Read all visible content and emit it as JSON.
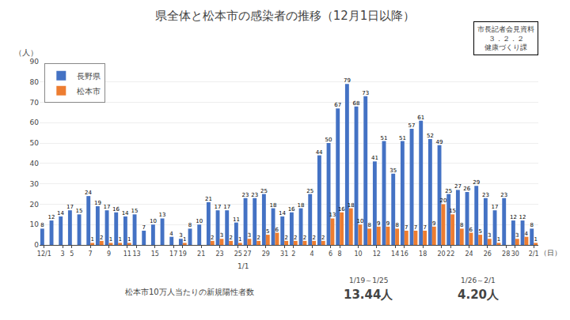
{
  "chart_data": {
    "type": "bar",
    "title": "県全体と松本市の感染者の推移（12月1日以降）",
    "ylabel": "（人）",
    "x_label": "（日）",
    "x_note": "1/1",
    "box_text": [
      "市長記者会見資料",
      "３．２．２",
      "健康づくり課"
    ],
    "annotations": [
      "松本市10万人当たりの新規陽性者数",
      "1/19～1/25",
      "13.44人",
      "1/26～2/1",
      "4.20人"
    ],
    "categories": [
      "12/1",
      null,
      "3",
      "5",
      null,
      "7",
      null,
      "9",
      null,
      "11",
      "13",
      null,
      "15",
      null,
      "17",
      "19",
      null,
      "21",
      null,
      "23",
      null,
      "25",
      "27",
      null,
      "29",
      null,
      "31",
      "2",
      null,
      "4",
      null,
      "6",
      "8",
      null,
      "10",
      null,
      "12",
      null,
      "14",
      "16",
      null,
      "18",
      null,
      "20",
      "22",
      null,
      "24",
      null,
      "26",
      null,
      "28",
      "30",
      null,
      "2/1"
    ],
    "series": [
      {
        "name": "長野県",
        "color": "#4472C4",
        "values": [
          8,
          12,
          14,
          17,
          15,
          24,
          19,
          17,
          16,
          14,
          15,
          7,
          10,
          13,
          4,
          3,
          8,
          10,
          21,
          17,
          17,
          11,
          23,
          23,
          25,
          18,
          14,
          16,
          18,
          25,
          44,
          50,
          67,
          79,
          68,
          73,
          41,
          51,
          35,
          51,
          57,
          61,
          52,
          49,
          25,
          27,
          26,
          29,
          23,
          17,
          23,
          12,
          12,
          8
        ]
      },
      {
        "name": "松本市",
        "color": "#ED7D31",
        "values": [
          0,
          0,
          0,
          0,
          0,
          1,
          2,
          1,
          1,
          1,
          0,
          0,
          0,
          0,
          0,
          1,
          0,
          0,
          2,
          3,
          2,
          1,
          3,
          2,
          5,
          6,
          2,
          2,
          2,
          2,
          2,
          13,
          16,
          18,
          10,
          8,
          9,
          9,
          8,
          7,
          7,
          7,
          9,
          20,
          15,
          8,
          6,
          5,
          3,
          1,
          0,
          3,
          4,
          1
        ],
        "value_labels": [
          null,
          null,
          null,
          null,
          null,
          "1",
          "2",
          "1",
          "1",
          "1",
          null,
          null,
          null,
          null,
          null,
          "1",
          null,
          null,
          "2",
          "3",
          "2",
          "1",
          "3",
          "2",
          "5",
          "6",
          "2",
          "2",
          "2",
          "2",
          "2",
          "13",
          "16",
          "18",
          "10",
          "8",
          "9",
          "9",
          "8",
          "7",
          "7",
          "7",
          "9",
          "20",
          "15",
          "8",
          "6",
          "5",
          "3",
          "1",
          null,
          "3",
          "4",
          "1"
        ]
      }
    ],
    "ylim": [
      0,
      90
    ],
    "yticks": [
      0,
      10,
      20,
      30,
      40,
      50,
      60,
      70,
      80,
      90
    ],
    "grid": true,
    "legend": "upper left",
    "data_labels": true
  }
}
